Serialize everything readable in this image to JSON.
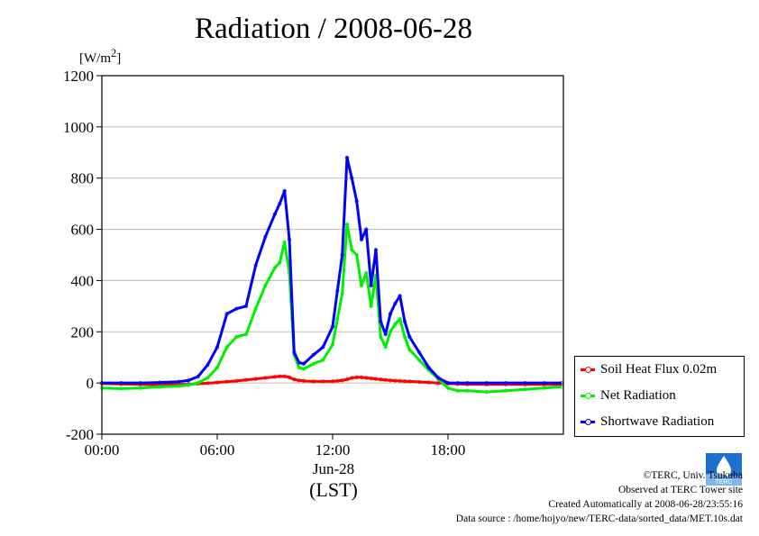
{
  "title": "Radiation / 2008-06-28",
  "chart_data": {
    "type": "line",
    "title": "Radiation / 2008-06-28",
    "ylabel": "[W/m2]",
    "xlabel": "(LST)",
    "xdate_label": "Jun-28",
    "ylim": [
      -200,
      1200
    ],
    "xlim": [
      0,
      24
    ],
    "yticks": [
      -200,
      0,
      200,
      400,
      600,
      800,
      1000,
      1200
    ],
    "xticks": [
      {
        "value": 0,
        "label": "00:00"
      },
      {
        "value": 6,
        "label": "06:00"
      },
      {
        "value": 12,
        "label": "12:00"
      },
      {
        "value": 18,
        "label": "18:00"
      }
    ],
    "grid": true,
    "legend_position": "bottom-right",
    "x": [
      0,
      1,
      2,
      3,
      4,
      4.5,
      5,
      5.5,
      6,
      6.5,
      7,
      7.5,
      8,
      8.5,
      9,
      9.25,
      9.5,
      9.75,
      10,
      10.25,
      10.5,
      11,
      11.5,
      12,
      12.25,
      12.5,
      12.75,
      13,
      13.25,
      13.5,
      13.75,
      14,
      14.25,
      14.5,
      14.75,
      15,
      15.25,
      15.5,
      15.75,
      16,
      16.5,
      17,
      17.5,
      18,
      18.5,
      19,
      20,
      21,
      22,
      23,
      23.9
    ],
    "series": [
      {
        "name": "Soil Heat Flux 0.02m",
        "color": "#ff0000",
        "values": [
          -2,
          -4,
          -6,
          -7,
          -6,
          -5,
          -3,
          -1,
          2,
          5,
          8,
          12,
          16,
          20,
          24,
          26,
          26,
          22,
          14,
          10,
          8,
          6,
          6,
          7,
          8,
          10,
          14,
          20,
          22,
          22,
          20,
          18,
          16,
          14,
          12,
          10,
          9,
          8,
          7,
          6,
          4,
          2,
          0,
          -2,
          -4,
          -5,
          -6,
          -6,
          -6,
          -6,
          -6
        ]
      },
      {
        "name": "Net Radiation",
        "color": "#00ee00",
        "values": [
          -20,
          -22,
          -20,
          -15,
          -12,
          -8,
          0,
          20,
          60,
          140,
          180,
          190,
          290,
          380,
          450,
          470,
          550,
          430,
          110,
          60,
          55,
          75,
          90,
          150,
          250,
          350,
          620,
          520,
          500,
          380,
          430,
          300,
          420,
          180,
          140,
          200,
          230,
          250,
          180,
          130,
          90,
          50,
          15,
          -20,
          -30,
          -30,
          -35,
          -30,
          -25,
          -20,
          -15
        ]
      },
      {
        "name": "Shortwave Radiation",
        "color": "#0000ff",
        "values": [
          0,
          0,
          0,
          2,
          5,
          10,
          25,
          70,
          140,
          270,
          290,
          300,
          460,
          570,
          660,
          700,
          750,
          560,
          120,
          80,
          75,
          110,
          140,
          220,
          360,
          500,
          880,
          800,
          710,
          560,
          600,
          380,
          520,
          240,
          190,
          270,
          310,
          340,
          240,
          180,
          120,
          60,
          20,
          0,
          0,
          0,
          0,
          0,
          0,
          0,
          0
        ]
      }
    ]
  },
  "credits": {
    "line1": "©TERC, Univ. Tsukuba",
    "line2": "Observed at TERC Tower site",
    "line3": "Created Automatically at 2008-06-28/23:55:16",
    "line4": "Data source : /home/hojyo/new/TERC-data/sorted_data/MET.10s.dat"
  },
  "logo_text": "TERC",
  "colors": {
    "grid": "#bbbbbb",
    "axis": "#000000"
  }
}
